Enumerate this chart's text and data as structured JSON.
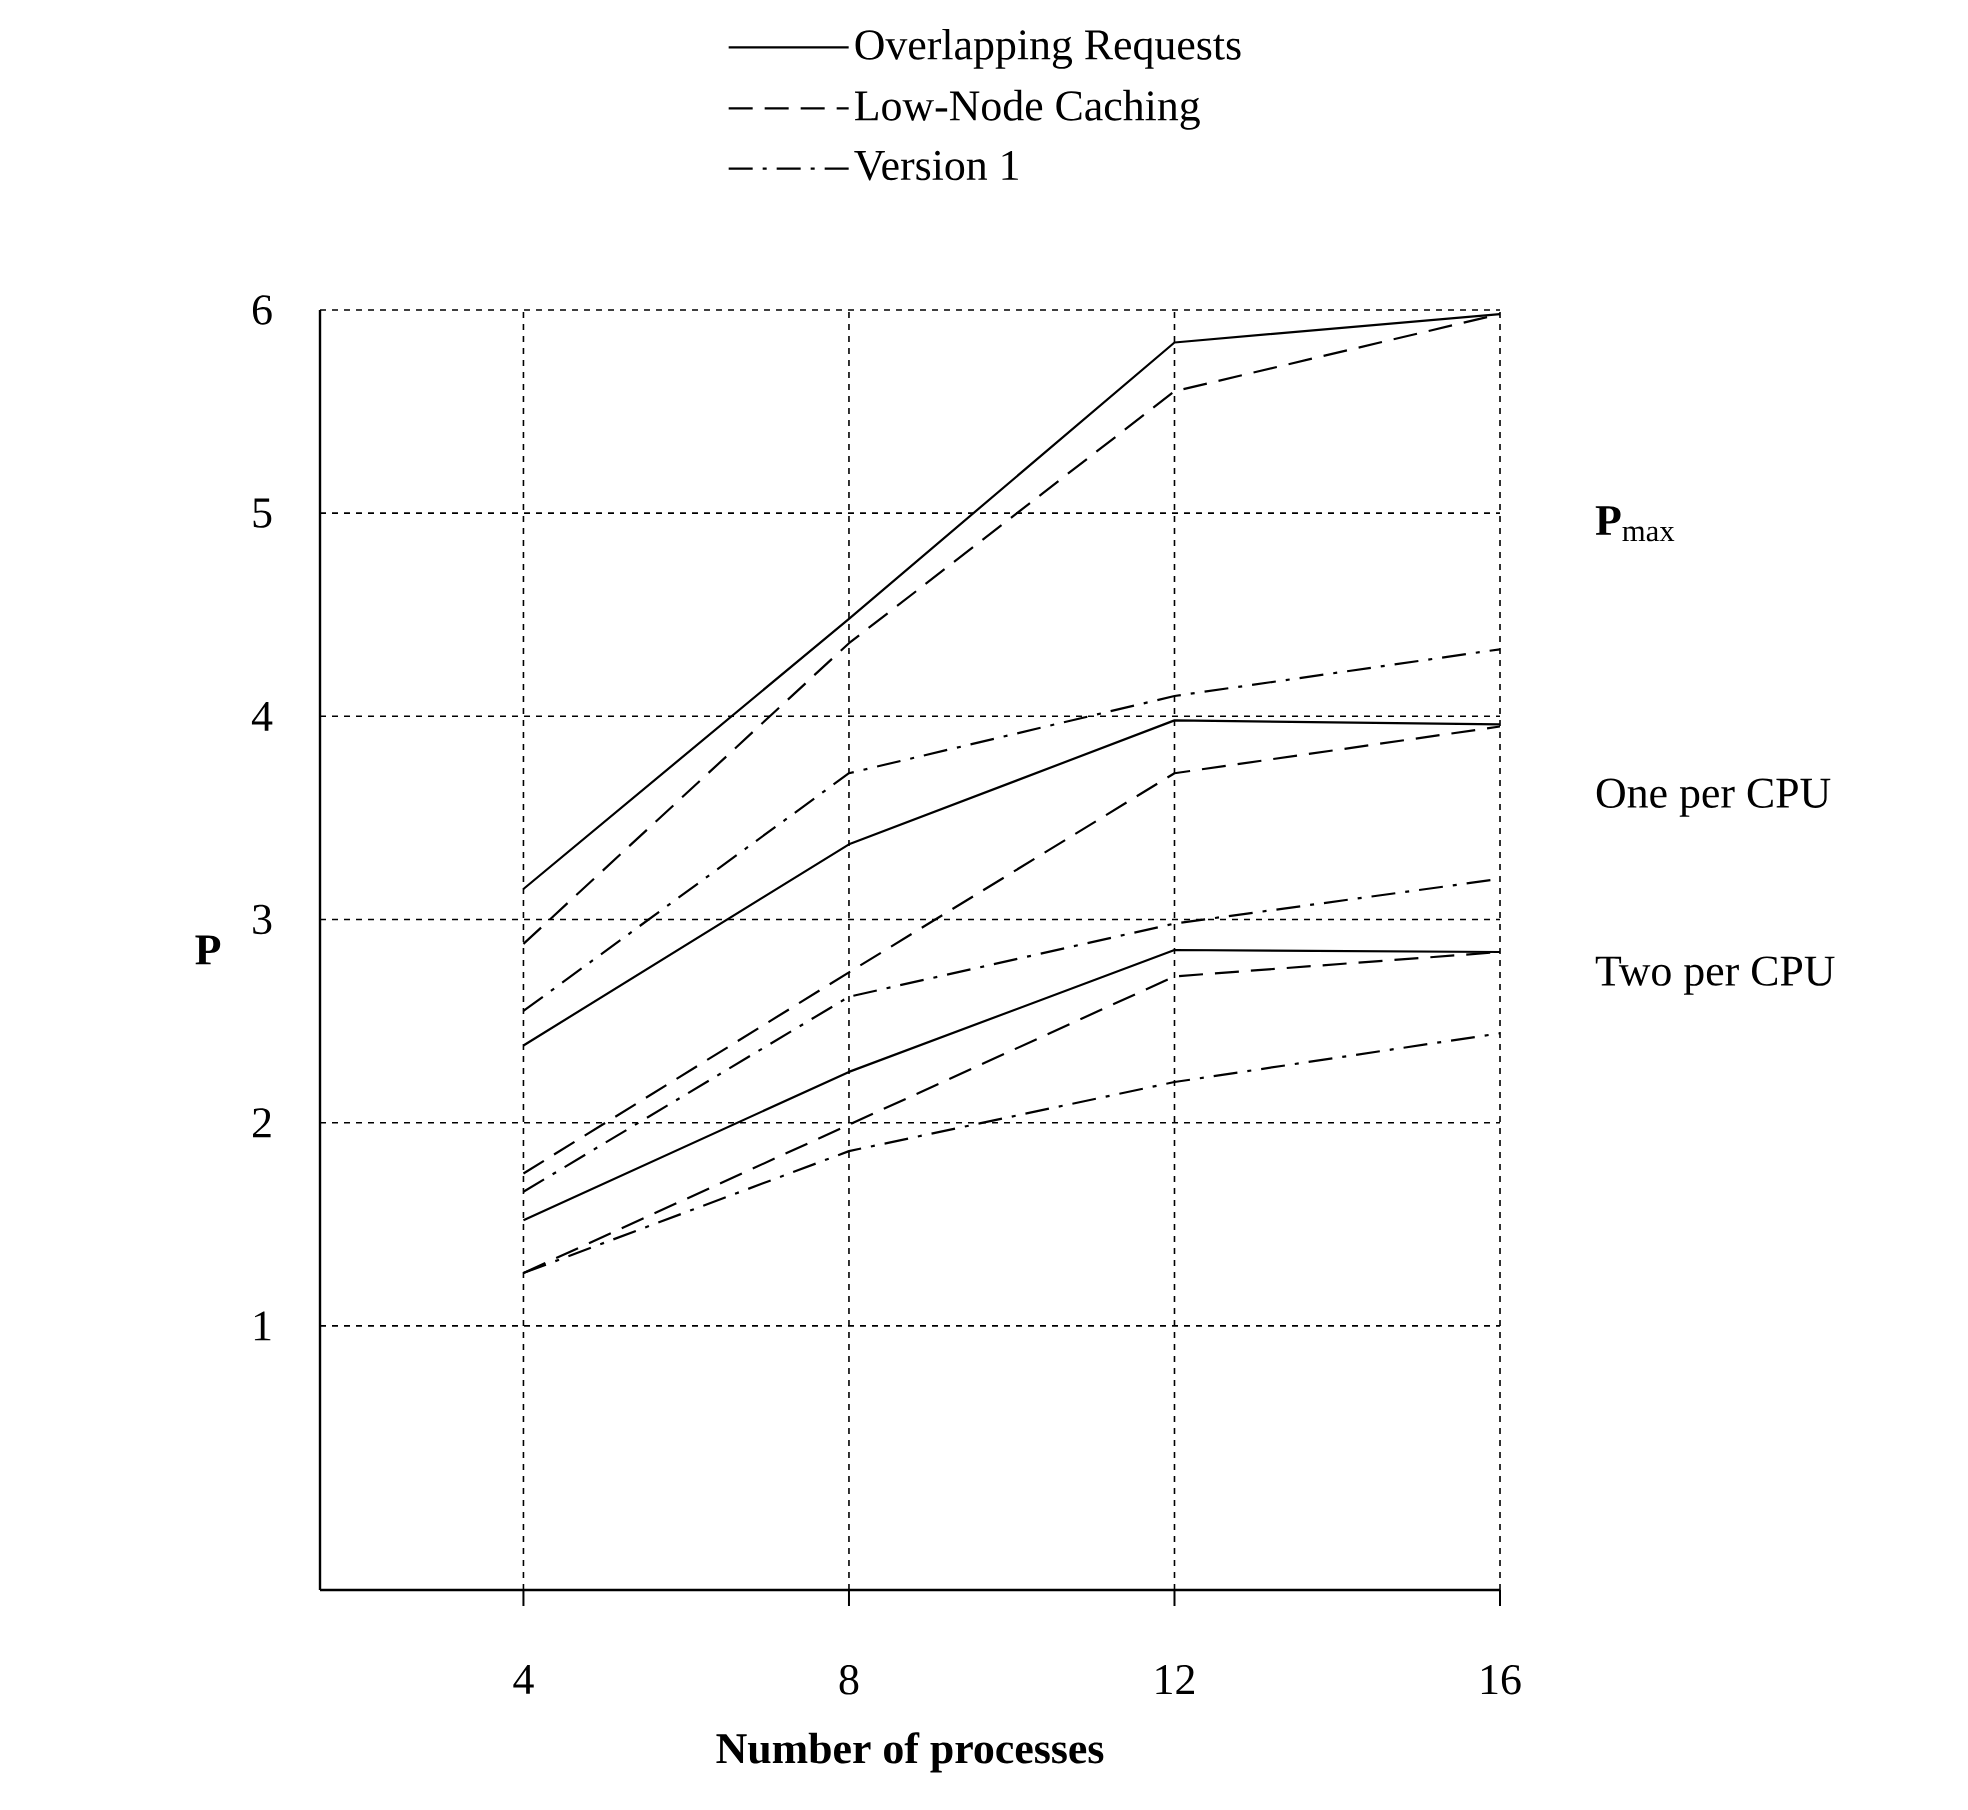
{
  "chart_data": {
    "type": "line",
    "xlabel": "Number of processes",
    "ylabel": "P",
    "xlim": [
      1.5,
      16
    ],
    "ylim": [
      -0.3,
      6
    ],
    "xticks": [
      4,
      8,
      12,
      16
    ],
    "yticks": [
      1,
      2,
      3,
      4,
      5,
      6
    ],
    "grid": true,
    "legend": "top",
    "marker": "none",
    "annotations": [
      "**P**$_{max}$",
      "One per CPU",
      "Two per CPU"
    ],
    "series": [
      {
        "name": "Overlapping Requests",
        "color": "#000000",
        "line_style": "solid",
        "x": [
          4,
          8,
          12,
          16
        ],
        "values": [
          3.15,
          4.48,
          5.84,
          5.98
        ]
      },
      {
        "name": "Low-Node Caching",
        "color": "#000000",
        "line_style": "dashed",
        "x": [
          4,
          8,
          12,
          16
        ],
        "values": [
          2.88,
          4.36,
          5.6,
          5.98
        ]
      },
      {
        "name": "Version 1",
        "color": "#000000",
        "line_style": "dashdot",
        "x": [
          4,
          8,
          12,
          16
        ],
        "values": [
          2.55,
          3.72,
          4.1,
          4.33
        ]
      },
      {
        "color": "#000000",
        "line_style": "solid",
        "x": [
          4,
          8,
          12,
          16
        ],
        "values": [
          2.38,
          3.37,
          3.98,
          3.96
        ]
      },
      {
        "color": "#000000",
        "line_style": "dashed",
        "x": [
          4,
          8,
          12,
          16
        ],
        "values": [
          1.75,
          2.74,
          3.72,
          3.95
        ]
      },
      {
        "color": "#000000",
        "line_style": "dashdot",
        "x": [
          4,
          8,
          12,
          16
        ],
        "values": [
          1.66,
          2.62,
          2.98,
          3.2
        ]
      },
      {
        "color": "#000000",
        "line_style": "solid",
        "x": [
          4,
          8,
          12,
          16
        ],
        "values": [
          1.52,
          2.25,
          2.85,
          2.84
        ]
      },
      {
        "color": "#000000",
        "line_style": "dashed",
        "x": [
          4,
          8,
          12,
          16
        ],
        "values": [
          1.26,
          1.99,
          2.72,
          2.84
        ]
      },
      {
        "color": "#000000",
        "line_style": "dashdot",
        "x": [
          4,
          8,
          12,
          16
        ],
        "values": [
          1.26,
          1.86,
          2.2,
          2.44
        ]
      }
    ]
  }
}
